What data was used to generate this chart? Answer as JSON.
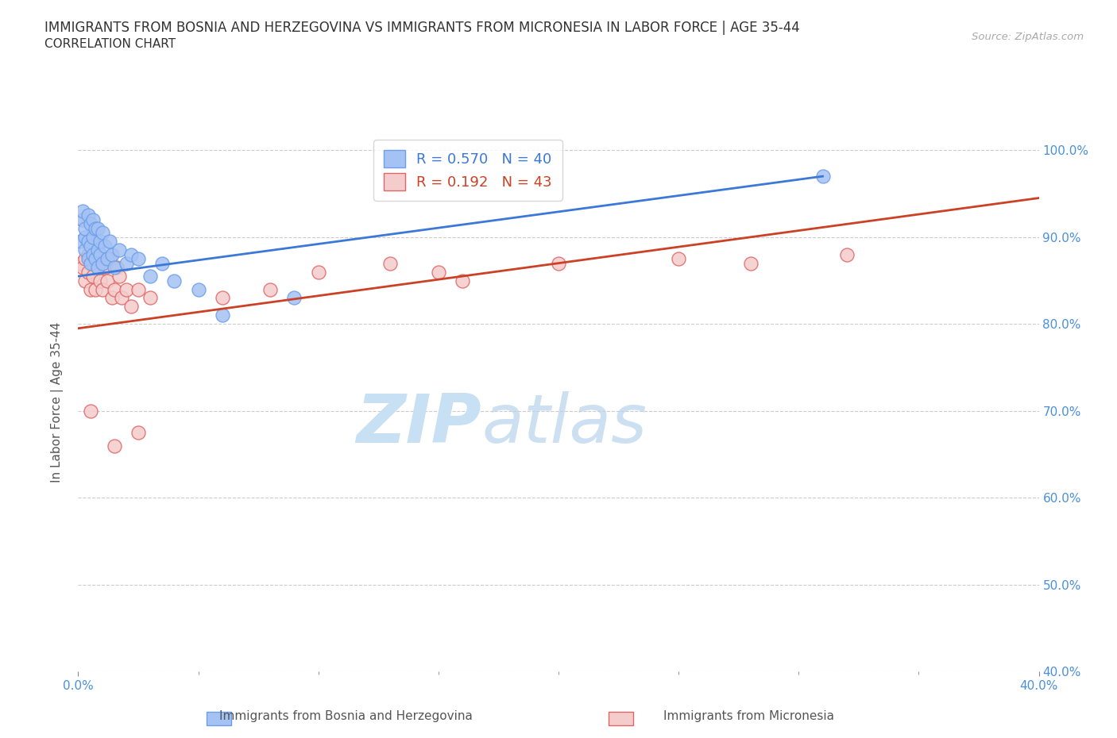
{
  "title_line1": "IMMIGRANTS FROM BOSNIA AND HERZEGOVINA VS IMMIGRANTS FROM MICRONESIA IN LABOR FORCE | AGE 35-44",
  "title_line2": "CORRELATION CHART",
  "source_text": "Source: ZipAtlas.com",
  "ylabel": "In Labor Force | Age 35-44",
  "xlim": [
    0.0,
    0.4
  ],
  "ylim": [
    0.4,
    1.02
  ],
  "yticks": [
    0.4,
    0.5,
    0.6,
    0.7,
    0.8,
    0.9,
    1.0
  ],
  "xticks": [
    0.0,
    0.4
  ],
  "xtick_labels": [
    "0.0%",
    "40.0%"
  ],
  "right_ytick_labels": [
    "40.0%",
    "50.0%",
    "60.0%",
    "70.0%",
    "80.0%",
    "90.0%",
    "100.0%"
  ],
  "blue_R": 0.57,
  "blue_N": 40,
  "pink_R": 0.192,
  "pink_N": 43,
  "blue_color": "#a4c2f4",
  "pink_color": "#f4cccc",
  "blue_edge_color": "#6d9eeb",
  "pink_edge_color": "#e06666",
  "blue_line_color": "#3c78d8",
  "pink_line_color": "#cc4125",
  "legend_label_blue": "Immigrants from Bosnia and Herzegovina",
  "legend_label_pink": "Immigrants from Micronesia",
  "blue_scatter_x": [
    0.001,
    0.002,
    0.002,
    0.003,
    0.003,
    0.003,
    0.004,
    0.004,
    0.004,
    0.005,
    0.005,
    0.005,
    0.006,
    0.006,
    0.006,
    0.007,
    0.007,
    0.008,
    0.008,
    0.008,
    0.009,
    0.009,
    0.01,
    0.01,
    0.011,
    0.012,
    0.013,
    0.014,
    0.015,
    0.017,
    0.02,
    0.022,
    0.025,
    0.03,
    0.035,
    0.04,
    0.05,
    0.06,
    0.09,
    0.31
  ],
  "blue_scatter_y": [
    0.895,
    0.92,
    0.93,
    0.885,
    0.9,
    0.91,
    0.875,
    0.895,
    0.925,
    0.87,
    0.89,
    0.915,
    0.88,
    0.9,
    0.92,
    0.875,
    0.91,
    0.865,
    0.885,
    0.91,
    0.88,
    0.895,
    0.87,
    0.905,
    0.89,
    0.875,
    0.895,
    0.88,
    0.865,
    0.885,
    0.87,
    0.88,
    0.875,
    0.855,
    0.87,
    0.85,
    0.84,
    0.81,
    0.83,
    0.97
  ],
  "pink_scatter_x": [
    0.001,
    0.002,
    0.002,
    0.003,
    0.003,
    0.004,
    0.004,
    0.005,
    0.005,
    0.006,
    0.006,
    0.007,
    0.007,
    0.008,
    0.008,
    0.009,
    0.01,
    0.01,
    0.011,
    0.012,
    0.013,
    0.014,
    0.015,
    0.016,
    0.017,
    0.018,
    0.02,
    0.022,
    0.025,
    0.03,
    0.06,
    0.08,
    0.1,
    0.13,
    0.15,
    0.16,
    0.2,
    0.25,
    0.28,
    0.32,
    0.005,
    0.015,
    0.025
  ],
  "pink_scatter_y": [
    0.87,
    0.865,
    0.92,
    0.85,
    0.875,
    0.86,
    0.88,
    0.84,
    0.895,
    0.87,
    0.855,
    0.89,
    0.84,
    0.865,
    0.875,
    0.85,
    0.87,
    0.84,
    0.865,
    0.85,
    0.875,
    0.83,
    0.84,
    0.865,
    0.855,
    0.83,
    0.84,
    0.82,
    0.84,
    0.83,
    0.83,
    0.84,
    0.86,
    0.87,
    0.86,
    0.85,
    0.87,
    0.875,
    0.87,
    0.88,
    0.7,
    0.66,
    0.675
  ],
  "background_color": "#ffffff",
  "grid_color": "#c0c0c0",
  "watermark_zip": "ZIP",
  "watermark_atlas": "atlas",
  "watermark_color": "#c8e0f4"
}
